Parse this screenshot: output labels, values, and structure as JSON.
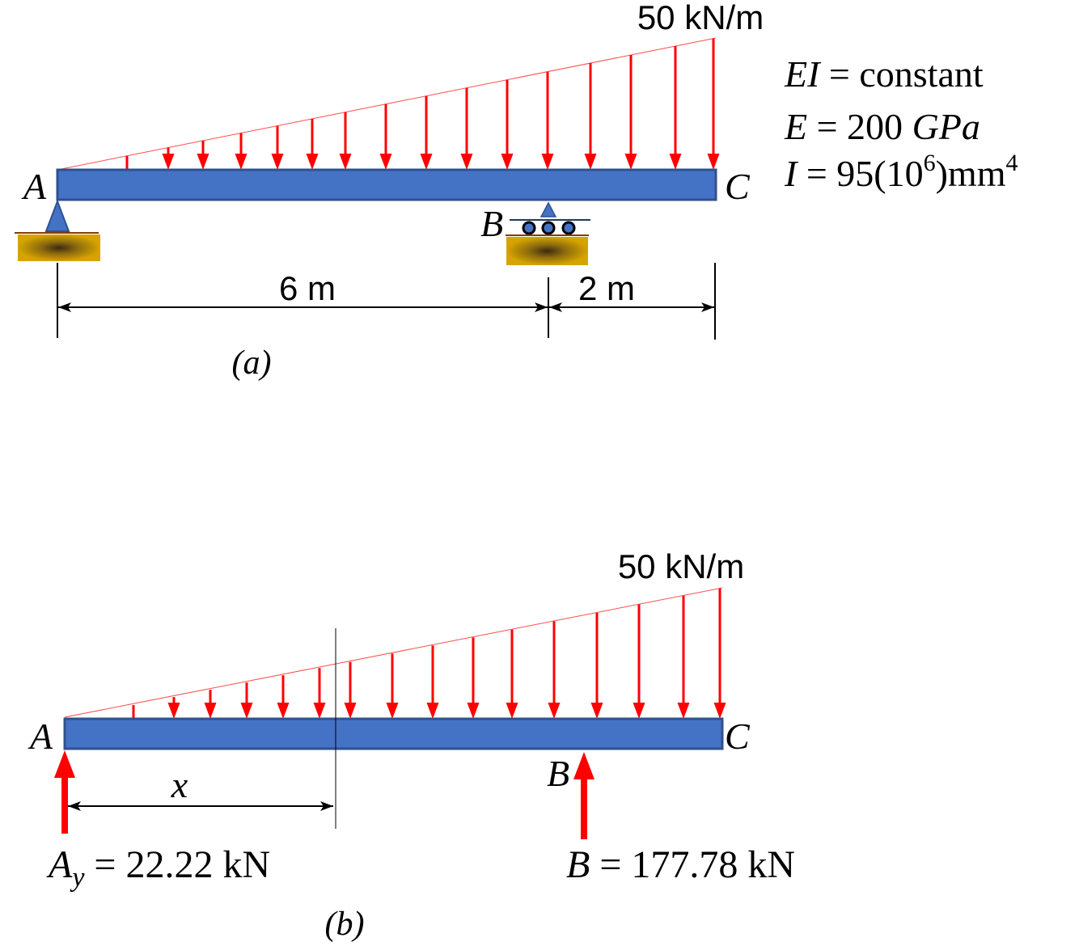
{
  "figure_a": {
    "load_label": "50 kN/m",
    "point_a": "A",
    "point_b": "B",
    "point_c": "C",
    "span_ab": "6 m",
    "span_bc": "2 m",
    "caption": "(a)"
  },
  "properties": {
    "ei": {
      "symbol": "EI",
      "value": " = constant"
    },
    "e": {
      "symbol": "E",
      "value": " = 200 ",
      "unit": "GPa"
    },
    "i": {
      "symbol": "I",
      "value": " = 95(10",
      "exponent": "6",
      "close": ")mm",
      "unit_exponent": "4"
    }
  },
  "figure_b": {
    "load_label": "50 kN/m",
    "point_a": "A",
    "point_b": "B",
    "point_c": "C",
    "distance_label": "x",
    "reaction_a": {
      "symbol": "A",
      "subscript": "y",
      "value": " = 22.22 kN"
    },
    "reaction_b": {
      "symbol": "B",
      "value": " = 177.78 kN"
    },
    "caption": "(b)"
  },
  "colors": {
    "beam_fill": "#4472C4",
    "beam_stroke": "#2F528F",
    "load": "#FF0000",
    "reaction": "#FF0000",
    "ground": "#CC9900"
  }
}
